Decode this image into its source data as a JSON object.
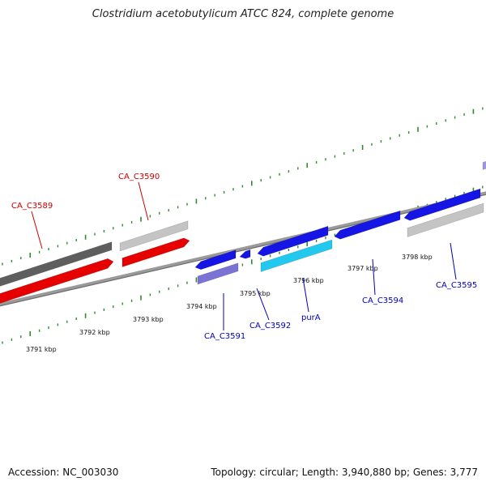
{
  "title": "Clostridium acetobutylicum ATCC 824, complete genome",
  "footer": {
    "accession": "Accession: NC_003030",
    "stats": "Topology: circular; Length: 3,940,880 bp; Genes: 3,777"
  },
  "colors": {
    "backbone": "#8a8a8a",
    "tick": "#2e8b2e",
    "forward_gene": "#e60000",
    "reverse_gene": "#1515e6",
    "rna_gene": "#22c8ee",
    "pseudo_gray_dark": "#5e5e5e",
    "pseudo_gray_light": "#c4c4c4",
    "pseudo_purple": "#7b72d6",
    "label_red": "#cc0000",
    "label_blue": "#0000bb"
  },
  "ticks": [
    {
      "label": "3791 kbp"
    },
    {
      "label": "3792 kbp"
    },
    {
      "label": "3793 kbp"
    },
    {
      "label": "3794 kbp"
    },
    {
      "label": "3795 kbp"
    },
    {
      "label": "3796 kbp"
    },
    {
      "label": "3797 kbp"
    },
    {
      "label": "3798 kbp"
    }
  ],
  "gene_labels": [
    {
      "name": "CA_C3589",
      "color": "red"
    },
    {
      "name": "CA_C3590",
      "color": "red"
    },
    {
      "name": "CA_C3591",
      "color": "blue"
    },
    {
      "name": "CA_C3592",
      "color": "blue"
    },
    {
      "name": "purA",
      "color": "blue"
    },
    {
      "name": "CA_C3594",
      "color": "blue"
    },
    {
      "name": "CA_C3595",
      "color": "blue"
    }
  ]
}
